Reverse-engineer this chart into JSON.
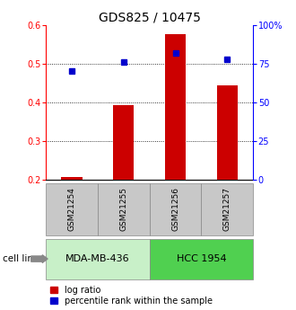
{
  "title": "GDS825 / 10475",
  "samples": [
    "GSM21254",
    "GSM21255",
    "GSM21256",
    "GSM21257"
  ],
  "log_ratio": [
    0.207,
    0.392,
    0.575,
    0.443
  ],
  "log_ratio_base": 0.2,
  "percentile_rank": [
    70,
    76,
    82,
    78
  ],
  "left_ylim": [
    0.2,
    0.6
  ],
  "right_ylim": [
    0,
    100
  ],
  "left_yticks": [
    0.2,
    0.3,
    0.4,
    0.5,
    0.6
  ],
  "right_yticks": [
    0,
    25,
    50,
    75,
    100
  ],
  "right_yticklabels": [
    "0",
    "25",
    "50",
    "75",
    "100%"
  ],
  "cell_lines": [
    {
      "label": "MDA-MB-436",
      "samples": [
        0,
        1
      ],
      "color": "#c8f0c8"
    },
    {
      "label": "HCC 1954",
      "samples": [
        2,
        3
      ],
      "color": "#50d050"
    }
  ],
  "bar_color": "#cc0000",
  "dot_color": "#0000cc",
  "bar_width": 0.4,
  "title_fontsize": 10,
  "tick_fontsize": 7,
  "legend_fontsize": 7,
  "gsm_box_color": "#c8c8c8"
}
